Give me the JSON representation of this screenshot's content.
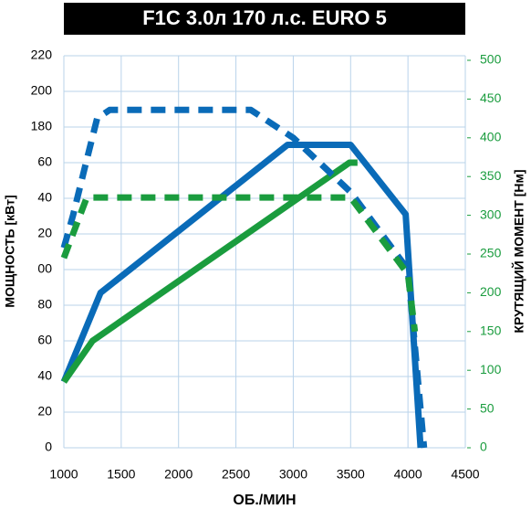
{
  "chart_data": {
    "type": "line",
    "title": "F1C 3.0л 170 л.с. EURO 5",
    "x_label": "ОБ./МИН",
    "y_label": "МОЩНОСТЬ [кВт]",
    "y2_label": "КРУТЯЩИЙ МОМЕНТ [Нм]",
    "xlim": [
      1000,
      4500
    ],
    "xticks": [
      1000,
      1500,
      2000,
      2500,
      3000,
      3500,
      4000,
      4500
    ],
    "ylim": [
      0,
      220
    ],
    "yticks": [
      0,
      20,
      40,
      60,
      80,
      {
        "value": 100,
        "label": "00"
      },
      {
        "value": 120,
        "label": "20"
      },
      {
        "value": 140,
        "label": "40"
      },
      {
        "value": 160,
        "label": "60"
      },
      180,
      200,
      220
    ],
    "y2lim": [
      0,
      500
    ],
    "y2ticks": [
      0,
      50,
      100,
      150,
      200,
      250,
      300,
      350,
      400,
      450,
      500
    ],
    "y2_color": "#1a9c3e",
    "grid": true,
    "series": [
      {
        "color": "#0a6bb8",
        "dashed": false,
        "x": [
          1000,
          1320,
          2950,
          3500,
          3980,
          4110
        ],
        "values": [
          37,
          87,
          170,
          170,
          131,
          0
        ]
      },
      {
        "color": "#1a9c3e",
        "dashed": false,
        "x": [
          1000,
          1250,
          3490,
          3560
        ],
        "values": [
          37,
          60,
          160,
          160
        ]
      },
      {
        "color": "#0a6bb8",
        "dashed": true,
        "axis": "y2",
        "x": [
          1000,
          1080,
          1180,
          1290,
          1400,
          2630,
          3000,
          3500,
          4000,
          4140
        ],
        "values": [
          258,
          300,
          360,
          425,
          436,
          436,
          400,
          330,
          230,
          0
        ]
      },
      {
        "color": "#1a9c3e",
        "dashed": true,
        "axis": "y2",
        "x": [
          1000,
          1200,
          3500,
          4000,
          4060
        ],
        "values": [
          245,
          323,
          323,
          224,
          150
        ]
      }
    ]
  }
}
